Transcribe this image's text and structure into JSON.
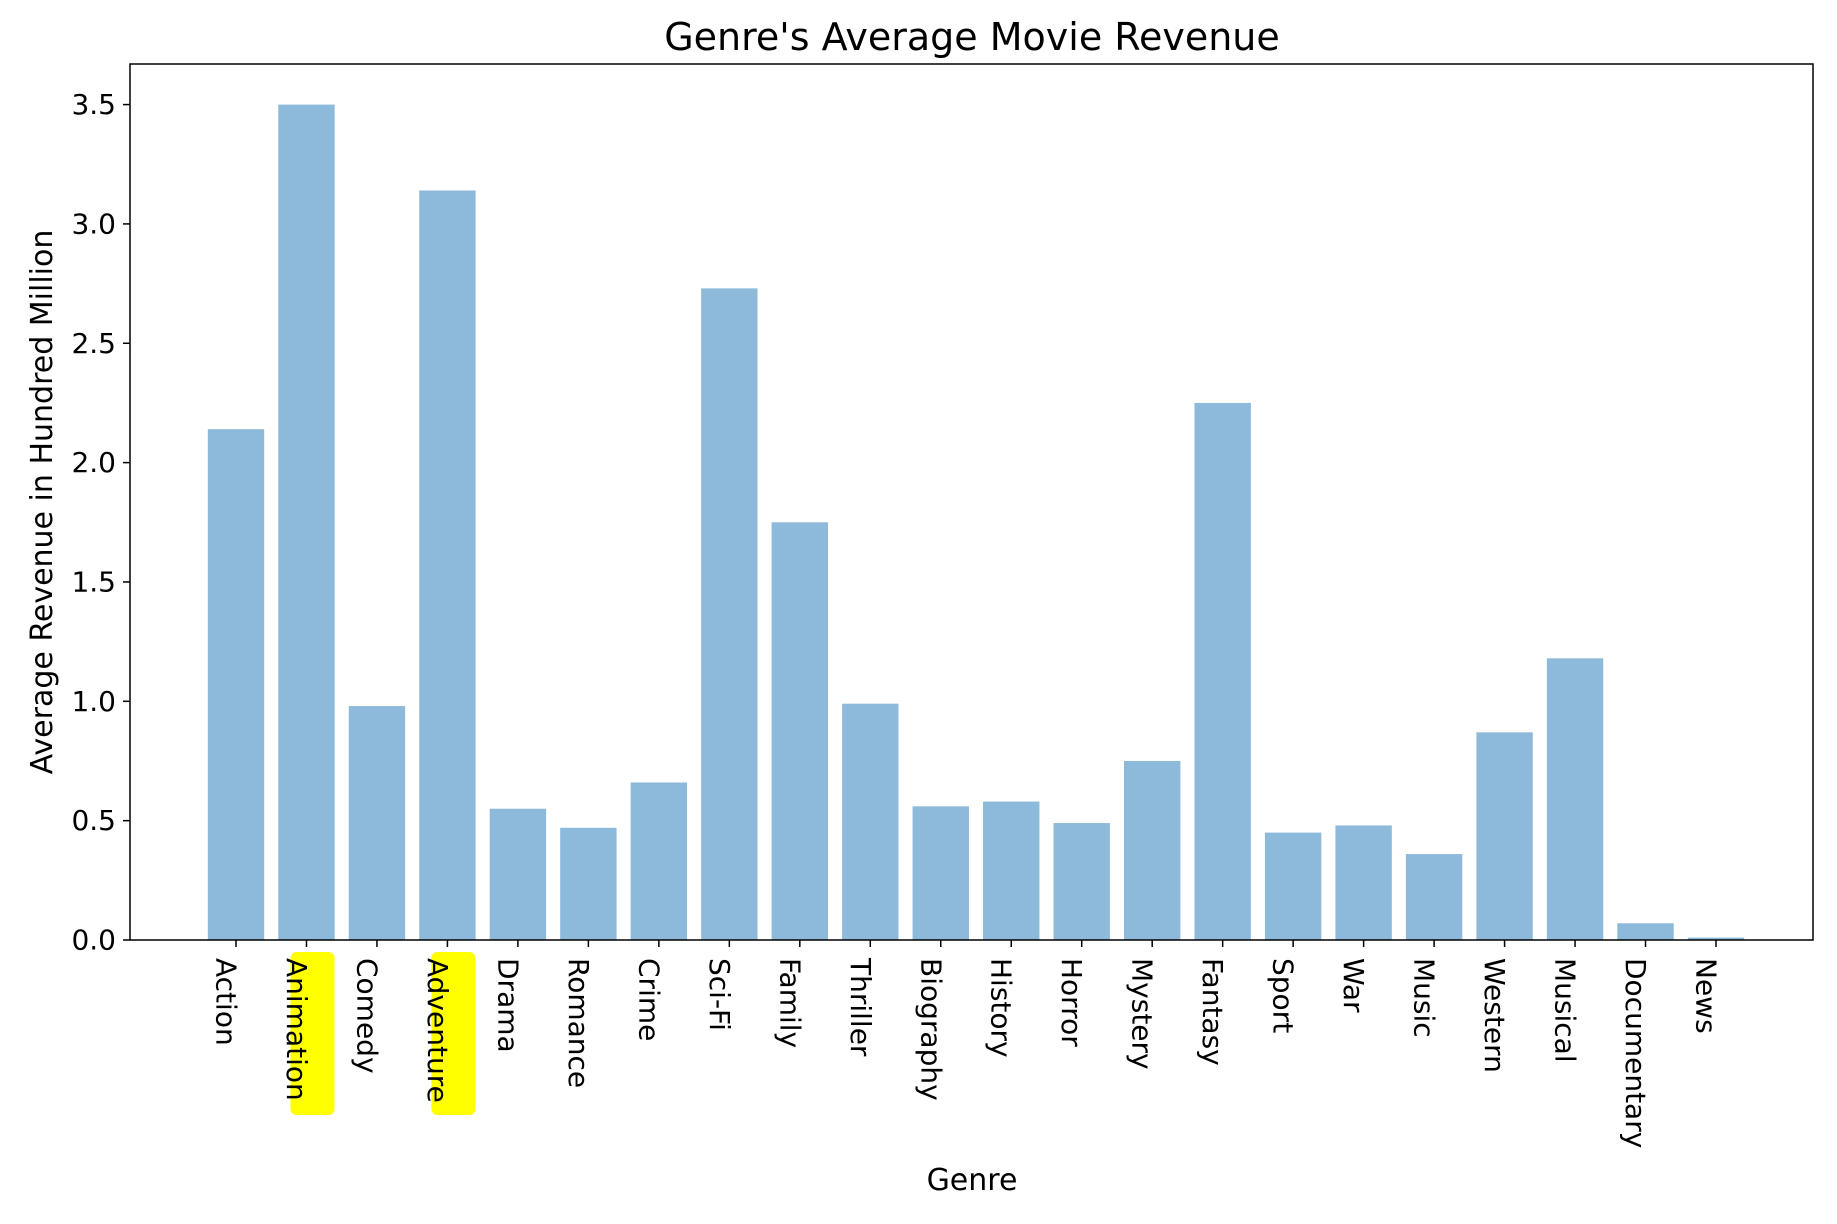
{
  "chart_data": {
    "type": "bar",
    "title": "Genre's Average Movie Revenue",
    "xlabel": "Genre",
    "ylabel": "Average Revenue in Hundred Million",
    "categories": [
      "Action",
      "Animation",
      "Comedy",
      "Adventure",
      "Drama",
      "Romance",
      "Crime",
      "Sci-Fi",
      "Family",
      "Thriller",
      "Biography",
      "History",
      "Horror",
      "Mystery",
      "Fantasy",
      "Sport",
      "War",
      "Music",
      "Western",
      "Musical",
      "Documentary",
      "News"
    ],
    "values": [
      2.14,
      3.5,
      0.98,
      3.14,
      0.55,
      0.47,
      0.66,
      2.73,
      1.75,
      0.99,
      0.56,
      0.58,
      0.49,
      0.75,
      2.25,
      0.45,
      0.48,
      0.36,
      0.87,
      1.18,
      0.07,
      0.01
    ],
    "ylim": [
      0,
      3.67
    ],
    "yticks": [
      0.0,
      0.5,
      1.0,
      1.5,
      2.0,
      2.5,
      3.0,
      3.5
    ],
    "ytick_labels": [
      "0.0",
      "0.5",
      "1.0",
      "1.5",
      "2.0",
      "2.5",
      "3.0",
      "3.5"
    ],
    "highlighted_categories": [
      "Animation",
      "Adventure"
    ],
    "grid": false,
    "colors": {
      "bar": "#8db9da",
      "highlight": "#ffff00",
      "axis": "#000000"
    }
  }
}
